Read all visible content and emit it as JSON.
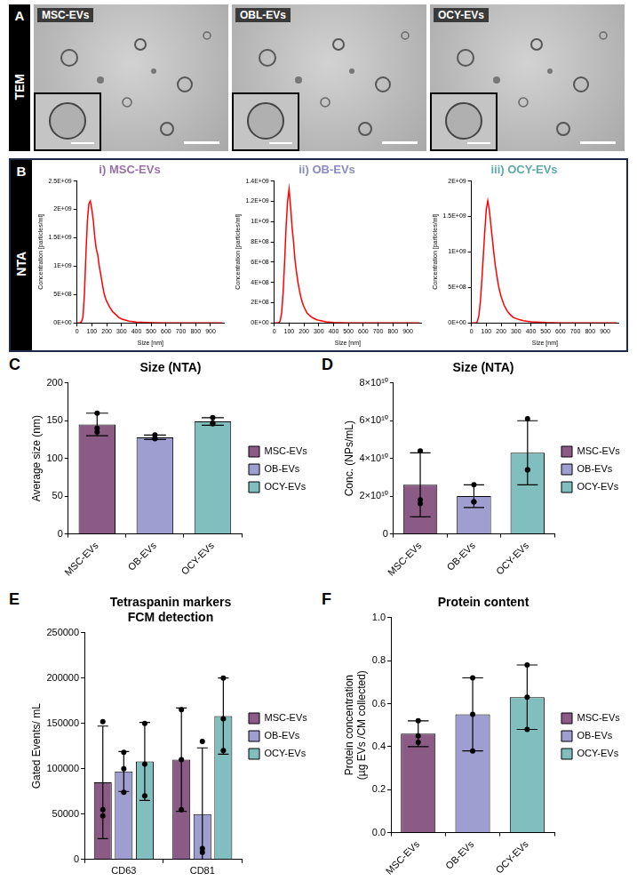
{
  "panel_A": {
    "letter": "A",
    "label": "TEM",
    "images": [
      "MSC-EVs",
      "OBL-EVs",
      "OCY-EVs"
    ]
  },
  "panel_B": {
    "letter": "B",
    "label": "NTA"
  },
  "chart_data": [
    {
      "panel": "B",
      "type": "line",
      "title": "i) MSC-EVs",
      "x_label": "Size [nm]",
      "y_label": "Concentration [particles/ml]",
      "x": [
        0,
        20,
        30,
        40,
        50,
        60,
        70,
        80,
        90,
        100,
        110,
        120,
        130,
        140,
        150,
        160,
        170,
        180,
        190,
        200,
        220,
        240,
        260,
        280,
        300,
        350,
        400,
        500,
        600,
        700,
        800,
        900,
        980
      ],
      "values": [
        0,
        0,
        20000000.0,
        100000000.0,
        500000000.0,
        1200000000.0,
        1800000000.0,
        2100000000.0,
        2150000000.0,
        2000000000.0,
        1800000000.0,
        1500000000.0,
        1300000000.0,
        1200000000.0,
        1000000000.0,
        850000000.0,
        700000000.0,
        550000000.0,
        450000000.0,
        380000000.0,
        280000000.0,
        200000000.0,
        150000000.0,
        100000000.0,
        70000000.0,
        30000000.0,
        15000000.0,
        5000000.0,
        0,
        0,
        0,
        0,
        0
      ],
      "color": "#ff0000",
      "xlim": [
        0,
        990
      ],
      "xticks": [
        0,
        100,
        200,
        300,
        400,
        500,
        600,
        700,
        800,
        900
      ],
      "ylim": [
        0,
        2500000000.0
      ],
      "yticks": [
        {
          "value": 0,
          "label": "0E+00"
        },
        {
          "value": 500000000.0,
          "label": "5E+08"
        },
        {
          "value": 1000000000.0,
          "label": "1E+09"
        },
        {
          "value": 1500000000.0,
          "label": "1.5E+09"
        },
        {
          "value": 2000000000.0,
          "label": "2E+09"
        },
        {
          "value": 2500000000.0,
          "label": "2.5E+09"
        }
      ],
      "grid": false
    },
    {
      "panel": "B",
      "type": "line",
      "title": "ii) OB-EVs",
      "x_label": "Size [nm]",
      "y_label": "Concentration [particles/ml]",
      "x": [
        0,
        20,
        30,
        40,
        50,
        60,
        70,
        80,
        90,
        100,
        110,
        120,
        130,
        140,
        150,
        160,
        170,
        180,
        190,
        200,
        220,
        240,
        260,
        280,
        300,
        350,
        400,
        500,
        600,
        700,
        800,
        900,
        980
      ],
      "values": [
        0,
        0,
        0,
        20000000.0,
        100000000.0,
        300000000.0,
        600000000.0,
        950000000.0,
        1200000000.0,
        1320000000.0,
        1150000000.0,
        950000000.0,
        800000000.0,
        620000000.0,
        500000000.0,
        400000000.0,
        320000000.0,
        250000000.0,
        200000000.0,
        160000000.0,
        100000000.0,
        70000000.0,
        50000000.0,
        35000000.0,
        25000000.0,
        10000000.0,
        5000000.0,
        0,
        0,
        0,
        0,
        0,
        0
      ],
      "color": "#ff0000",
      "xlim": [
        0,
        990
      ],
      "xticks": [
        0,
        100,
        200,
        300,
        400,
        500,
        600,
        700,
        800,
        900
      ],
      "ylim": [
        0,
        1400000000.0
      ],
      "yticks": [
        {
          "value": 0,
          "label": "0E+00"
        },
        {
          "value": 200000000.0,
          "label": "2E+08"
        },
        {
          "value": 400000000.0,
          "label": "4E+08"
        },
        {
          "value": 600000000.0,
          "label": "6E+08"
        },
        {
          "value": 800000000.0,
          "label": "8E+08"
        },
        {
          "value": 1000000000.0,
          "label": "1E+09"
        },
        {
          "value": 1200000000.0,
          "label": "1.2E+09"
        },
        {
          "value": 1400000000.0,
          "label": "1.4E+09"
        }
      ],
      "grid": false
    },
    {
      "panel": "B",
      "type": "line",
      "title": "iii) OCY-EVs",
      "x_label": "Size [nm]",
      "y_label": "Concentration [particles/ml]",
      "x": [
        0,
        20,
        30,
        40,
        50,
        60,
        70,
        80,
        90,
        100,
        110,
        120,
        130,
        140,
        150,
        160,
        170,
        180,
        190,
        200,
        220,
        240,
        260,
        280,
        300,
        350,
        400,
        500,
        600,
        700,
        800,
        900,
        980
      ],
      "values": [
        0,
        0,
        0,
        20000000.0,
        100000000.0,
        300000000.0,
        600000000.0,
        950000000.0,
        1300000000.0,
        1600000000.0,
        1720000000.0,
        1600000000.0,
        1400000000.0,
        1200000000.0,
        1000000000.0,
        820000000.0,
        680000000.0,
        550000000.0,
        450000000.0,
        370000000.0,
        250000000.0,
        170000000.0,
        120000000.0,
        80000000.0,
        60000000.0,
        30000000.0,
        15000000.0,
        5000000.0,
        0,
        0,
        0,
        0,
        0
      ],
      "color": "#ff0000",
      "xlim": [
        0,
        990
      ],
      "xticks": [
        0,
        100,
        200,
        300,
        400,
        500,
        600,
        700,
        800,
        900
      ],
      "ylim": [
        0,
        2000000000.0
      ],
      "yticks": [
        {
          "value": 0,
          "label": "0E+00"
        },
        {
          "value": 500000000.0,
          "label": "5E+08"
        },
        {
          "value": 1000000000.0,
          "label": "1E+09"
        },
        {
          "value": 1500000000.0,
          "label": "1.5E+09"
        },
        {
          "value": 2000000000.0,
          "label": "2E+09"
        }
      ],
      "grid": false
    },
    {
      "panel": "C",
      "type": "bar",
      "title": "Size (NTA)",
      "y_label": "Average size (nm)",
      "categories": [
        "MSC-EVs",
        "OB-EVs",
        "OCY-EVs"
      ],
      "values": [
        145,
        128,
        149
      ],
      "errors": [
        15,
        3,
        5
      ],
      "points": [
        [
          160,
          140,
          135
        ],
        [
          131,
          127,
          126
        ],
        [
          154,
          147,
          146
        ]
      ],
      "colors": [
        "#8b5b86",
        "#9e9fd0",
        "#80bfbe"
      ],
      "ylim": [
        0,
        200
      ],
      "yticks": [
        0,
        50,
        100,
        150,
        200
      ],
      "grid": false,
      "legend": "right"
    },
    {
      "panel": "D",
      "type": "bar",
      "title": "Size (NTA)",
      "y_label": "Conc. (NPs/mL)",
      "categories": [
        "MSC-EVs",
        "OB-EVs",
        "OCY-EVs"
      ],
      "values": [
        26000000000.0,
        20000000000.0,
        43000000000.0
      ],
      "errors": [
        17000000000.0,
        6000000000.0,
        17000000000.0
      ],
      "points": [
        [
          44000000000.0,
          18000000000.0,
          16000000000.0
        ],
        [
          26000000000.0,
          17000000000.0,
          17000000000.0
        ],
        [
          61000000000.0,
          34000000000.0,
          34000000000.0
        ]
      ],
      "colors": [
        "#8b5b86",
        "#9e9fd0",
        "#80bfbe"
      ],
      "ylim": [
        0,
        80000000000.0
      ],
      "yticks": [
        0,
        {
          "value": 20000000000.0,
          "label": "2×10¹⁰"
        },
        {
          "value": 40000000000.0,
          "label": "4×10¹⁰"
        },
        {
          "value": 60000000000.0,
          "label": "6×10¹⁰"
        },
        {
          "value": 80000000000.0,
          "label": "8×10¹⁰"
        }
      ],
      "grid": false,
      "legend": "right"
    },
    {
      "panel": "E",
      "type": "bar",
      "title": [
        "Tetraspanin markers",
        "FCM detection"
      ],
      "y_label": "Gated Events/ mL",
      "categories": [
        "CD63",
        "CD81"
      ],
      "series": [
        {
          "name": "MSC-EVs",
          "color": "#8b5b86",
          "values": [
            85000,
            110000
          ],
          "errors": [
            62000,
            57000
          ],
          "points": [
            [
              152000,
              55000,
              48000
            ],
            [
              165000,
              110000,
              55000
            ]
          ]
        },
        {
          "name": "OB-EVs",
          "color": "#9e9fd0",
          "values": [
            97000,
            50000
          ],
          "errors": [
            22000,
            73000
          ],
          "points": [
            [
              118000,
              100000,
              74000
            ],
            [
              130000,
              12000,
              8000
            ]
          ]
        },
        {
          "name": "OCY-EVs",
          "color": "#80bfbe",
          "values": [
            108000,
            158000
          ],
          "errors": [
            43000,
            42000
          ],
          "points": [
            [
              150000,
              105000,
              70000
            ],
            [
              200000,
              155000,
              120000
            ]
          ]
        }
      ],
      "ylim": [
        0,
        250000
      ],
      "yticks": [
        0,
        50000,
        100000,
        150000,
        200000,
        250000
      ],
      "grid": false,
      "legend": "right"
    },
    {
      "panel": "F",
      "type": "bar",
      "title": "Protein content",
      "y_label": [
        "Protein concentration",
        "(µg EVs /CM collected)"
      ],
      "categories": [
        "MSC-EVs",
        "OB-EVs",
        "OCY-EVs"
      ],
      "values": [
        0.46,
        0.55,
        0.63
      ],
      "errors": [
        0.06,
        0.17,
        0.15
      ],
      "points": [
        [
          0.52,
          0.45,
          0.42
        ],
        [
          0.72,
          0.55,
          0.38
        ],
        [
          0.78,
          0.63,
          0.48
        ]
      ],
      "colors": [
        "#8b5b86",
        "#9e9fd0",
        "#80bfbe"
      ],
      "ylim": [
        0,
        1
      ],
      "yticks": [
        {
          "value": 0,
          "label": "0.0"
        },
        0.2,
        0.4,
        0.6,
        0.8,
        {
          "value": 1,
          "label": "1.0"
        }
      ],
      "grid": false,
      "legend": "right"
    }
  ]
}
